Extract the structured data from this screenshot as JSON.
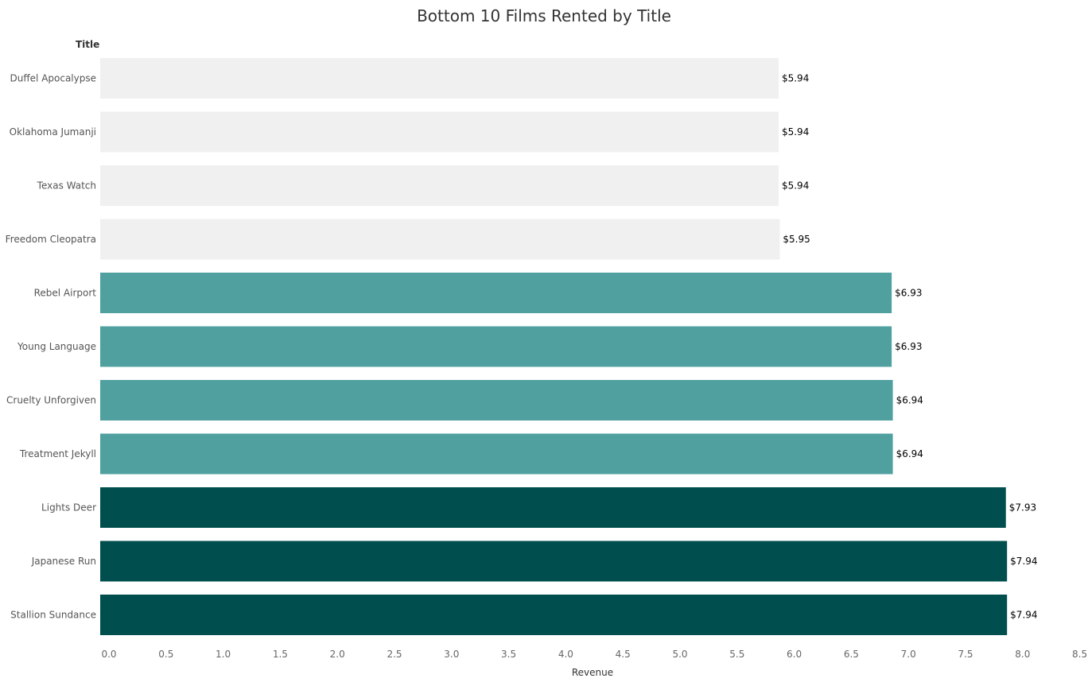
{
  "chart_data": {
    "type": "bar",
    "orientation": "horizontal",
    "title": "Bottom 10 Films Rented by Title",
    "row_header": "Title",
    "xlabel": "Revenue",
    "xlim": [
      0,
      8.5
    ],
    "x_ticks": [
      "0.0",
      "0.5",
      "1.0",
      "1.5",
      "2.0",
      "2.5",
      "3.0",
      "3.5",
      "4.0",
      "4.5",
      "5.0",
      "5.5",
      "6.0",
      "6.5",
      "7.0",
      "7.5",
      "8.0",
      "8.5"
    ],
    "grid": false,
    "categories": [
      "Duffel Apocalypse",
      "Oklahoma Jumanji",
      "Texas Watch",
      "Freedom Cleopatra",
      "Rebel Airport",
      "Young Language",
      "Cruelty Unforgiven",
      "Treatment Jekyll",
      "Lights Deer",
      "Japanese Run",
      "Stallion Sundance"
    ],
    "values": [
      5.94,
      5.94,
      5.94,
      5.95,
      6.93,
      6.93,
      6.94,
      6.94,
      7.93,
      7.94,
      7.94
    ],
    "data_labels": [
      "$5.94",
      "$5.94",
      "$5.94",
      "$5.95",
      "$6.93",
      "$6.93",
      "$6.94",
      "$6.94",
      "$7.93",
      "$7.94",
      "$7.94"
    ],
    "bar_colors": [
      "#f0f0f0",
      "#f0f0f0",
      "#f0f0f0",
      "#f0f0f0",
      "#50a0a0",
      "#50a0a0",
      "#50a0a0",
      "#50a0a0",
      "#004e4e",
      "#004e4e",
      "#004e4e"
    ]
  }
}
